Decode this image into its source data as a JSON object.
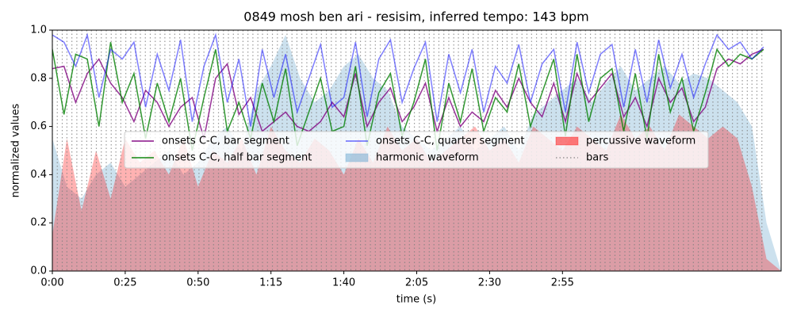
{
  "chart_data": {
    "type": "line",
    "title": "0849 mosh ben ari - resisim, inferred tempo: 143 bpm",
    "xlabel": "time (s)",
    "ylabel": "normalized values",
    "xlim": [
      0,
      250
    ],
    "ylim": [
      0,
      1
    ],
    "xticks": [
      {
        "value": 0,
        "label": "0:00"
      },
      {
        "value": 25,
        "label": "0:25"
      },
      {
        "value": 50,
        "label": "0:50"
      },
      {
        "value": 75,
        "label": "1:15"
      },
      {
        "value": 100,
        "label": "1:40"
      },
      {
        "value": 125,
        "label": "2:05"
      },
      {
        "value": 150,
        "label": "2:30"
      },
      {
        "value": 175,
        "label": "2:55"
      }
    ],
    "yticks": [
      {
        "value": 0,
        "label": "0.0"
      },
      0.2,
      0.4,
      0.6,
      0.8,
      {
        "value": 1,
        "label": "1.0"
      }
    ],
    "x": [
      0,
      4,
      8,
      12,
      16,
      20,
      24,
      28,
      32,
      36,
      40,
      44,
      48,
      52,
      56,
      60,
      64,
      68,
      72,
      76,
      80,
      84,
      88,
      92,
      96,
      100,
      104,
      108,
      112,
      116,
      120,
      124,
      128,
      132,
      136,
      140,
      144,
      148,
      152,
      156,
      160,
      164,
      168,
      172,
      176,
      180,
      184,
      188,
      192,
      196,
      200,
      204,
      208,
      212,
      216,
      220,
      224,
      228,
      232,
      236,
      240,
      244
    ],
    "legend": "center",
    "series": [
      {
        "name": "onsets C-C, bar segment",
        "color": "#800080",
        "alpha": 0.8,
        "style": "line",
        "values": [
          0.84,
          0.85,
          0.7,
          0.82,
          0.88,
          0.78,
          0.72,
          0.62,
          0.75,
          0.7,
          0.6,
          0.68,
          0.72,
          0.55,
          0.8,
          0.86,
          0.65,
          0.72,
          0.58,
          0.62,
          0.66,
          0.6,
          0.58,
          0.62,
          0.7,
          0.64,
          0.82,
          0.6,
          0.7,
          0.76,
          0.62,
          0.68,
          0.78,
          0.58,
          0.72,
          0.6,
          0.66,
          0.62,
          0.75,
          0.68,
          0.8,
          0.7,
          0.64,
          0.78,
          0.62,
          0.82,
          0.7,
          0.76,
          0.82,
          0.64,
          0.72,
          0.6,
          0.8,
          0.7,
          0.76,
          0.62,
          0.68,
          0.84,
          0.88,
          0.86,
          0.9,
          0.92
        ]
      },
      {
        "name": "onsets C-C, half bar segment",
        "color": "#008000",
        "alpha": 0.8,
        "style": "line",
        "values": [
          0.92,
          0.65,
          0.9,
          0.88,
          0.6,
          0.95,
          0.7,
          0.82,
          0.55,
          0.78,
          0.62,
          0.8,
          0.5,
          0.72,
          0.92,
          0.58,
          0.7,
          0.55,
          0.78,
          0.62,
          0.84,
          0.52,
          0.66,
          0.8,
          0.58,
          0.6,
          0.85,
          0.52,
          0.74,
          0.82,
          0.56,
          0.7,
          0.88,
          0.5,
          0.78,
          0.62,
          0.84,
          0.58,
          0.72,
          0.66,
          0.86,
          0.6,
          0.74,
          0.88,
          0.56,
          0.9,
          0.62,
          0.8,
          0.84,
          0.58,
          0.82,
          0.55,
          0.9,
          0.66,
          0.8,
          0.58,
          0.74,
          0.92,
          0.85,
          0.9,
          0.88,
          0.92
        ]
      },
      {
        "name": "onsets C-C, quarter segment",
        "color": "#0000ff",
        "alpha": 0.5,
        "style": "line",
        "values": [
          0.98,
          0.95,
          0.85,
          0.98,
          0.72,
          0.92,
          0.88,
          0.95,
          0.68,
          0.9,
          0.75,
          0.96,
          0.62,
          0.85,
          0.98,
          0.7,
          0.88,
          0.6,
          0.92,
          0.72,
          0.9,
          0.66,
          0.8,
          0.94,
          0.68,
          0.72,
          0.95,
          0.64,
          0.88,
          0.96,
          0.7,
          0.84,
          0.95,
          0.62,
          0.9,
          0.74,
          0.92,
          0.66,
          0.85,
          0.78,
          0.94,
          0.7,
          0.86,
          0.92,
          0.66,
          0.95,
          0.74,
          0.9,
          0.94,
          0.68,
          0.92,
          0.7,
          0.96,
          0.76,
          0.9,
          0.72,
          0.86,
          0.98,
          0.92,
          0.95,
          0.88,
          0.93
        ]
      },
      {
        "name": "harmonic waveform",
        "color": "#7fb3d5",
        "alpha": 0.4,
        "style": "area",
        "x": [
          0,
          5,
          10,
          15,
          20,
          25,
          30,
          35,
          40,
          45,
          50,
          55,
          60,
          65,
          70,
          75,
          80,
          85,
          90,
          95,
          100,
          105,
          110,
          115,
          120,
          125,
          130,
          135,
          140,
          145,
          150,
          155,
          160,
          165,
          170,
          175,
          180,
          185,
          190,
          195,
          200,
          205,
          210,
          215,
          220,
          225,
          230,
          235,
          240,
          245,
          250
        ],
        "values": [
          0.55,
          0.35,
          0.3,
          0.4,
          0.45,
          0.35,
          0.4,
          0.45,
          0.5,
          0.4,
          0.45,
          0.55,
          0.6,
          0.5,
          0.75,
          0.85,
          0.98,
          0.8,
          0.7,
          0.75,
          0.85,
          0.9,
          0.8,
          0.75,
          0.6,
          0.55,
          0.5,
          0.55,
          0.6,
          0.5,
          0.55,
          0.6,
          0.5,
          0.65,
          0.7,
          0.75,
          0.8,
          0.7,
          0.78,
          0.85,
          0.75,
          0.8,
          0.85,
          0.78,
          0.82,
          0.8,
          0.75,
          0.7,
          0.6,
          0.2,
          0.0
        ]
      },
      {
        "name": "percussive waveform",
        "color": "#ff0000",
        "alpha": 0.3,
        "style": "area",
        "x": [
          0,
          5,
          10,
          15,
          20,
          25,
          30,
          35,
          40,
          45,
          50,
          55,
          60,
          65,
          70,
          75,
          80,
          85,
          90,
          95,
          100,
          105,
          110,
          115,
          120,
          125,
          130,
          135,
          140,
          145,
          150,
          155,
          160,
          165,
          170,
          175,
          180,
          185,
          190,
          195,
          200,
          205,
          210,
          215,
          220,
          225,
          230,
          235,
          240,
          245,
          250
        ],
        "values": [
          0.15,
          0.55,
          0.25,
          0.5,
          0.3,
          0.55,
          0.45,
          0.5,
          0.4,
          0.55,
          0.35,
          0.5,
          0.45,
          0.55,
          0.4,
          0.6,
          0.5,
          0.45,
          0.55,
          0.5,
          0.4,
          0.55,
          0.45,
          0.6,
          0.5,
          0.55,
          0.45,
          0.5,
          0.55,
          0.6,
          0.5,
          0.55,
          0.45,
          0.6,
          0.55,
          0.5,
          0.6,
          0.55,
          0.5,
          0.65,
          0.55,
          0.6,
          0.5,
          0.65,
          0.6,
          0.55,
          0.6,
          0.55,
          0.35,
          0.05,
          0.0
        ]
      },
      {
        "name": "bars",
        "color": "#808080",
        "alpha": 0.8,
        "style": "vlines",
        "x": [
          0,
          1.7,
          3.4,
          5.0,
          6.7,
          8.4,
          10.1,
          11.8,
          13.4,
          15.1,
          16.8,
          18.5,
          20.2,
          21.8,
          23.5,
          25.2,
          26.9,
          28.6,
          30.2,
          31.9,
          33.6,
          35.3,
          37.0,
          38.6,
          40.3,
          42.0,
          43.7,
          45.4,
          47.0,
          48.7,
          50.3,
          52.0,
          53.7,
          55.3,
          57.0,
          58.7,
          60.4,
          62.1,
          63.7,
          65.4,
          67.1,
          68.8,
          70.5,
          72.1,
          73.8,
          75.5,
          77.2,
          78.9,
          80.5,
          82.2,
          83.9,
          85.6,
          87.3,
          88.9,
          90.6,
          92.3,
          94.0,
          95.7,
          97.3,
          99.0,
          100.7,
          102.4,
          104.1,
          105.7,
          107.4,
          109.1,
          110.8,
          112.5,
          114.1,
          115.8,
          117.5,
          119.2,
          120.9,
          122.5,
          124.2,
          125.9,
          127.6,
          129.3,
          130.9,
          132.6,
          134.3,
          136.0,
          137.7,
          139.3,
          141.0,
          142.7,
          144.4,
          146.1,
          147.7,
          149.4,
          151.0,
          152.7,
          154.4,
          156.0,
          157.7,
          159.4,
          161.1,
          162.8,
          164.4,
          166.1,
          167.8,
          169.5,
          171.2,
          172.8,
          174.5,
          176.2,
          177.9,
          179.6,
          181.2,
          182.9,
          184.6,
          186.3,
          188.0,
          189.6,
          191.3,
          193.0,
          194.7,
          196.4,
          198.0,
          199.7,
          201.4,
          203.1,
          204.8,
          206.4,
          208.1,
          209.8,
          211.5,
          213.2,
          214.8,
          216.5,
          218.2,
          219.9,
          221.6,
          223.2,
          224.9,
          226.6,
          228.3,
          230.0,
          231.6,
          233.3,
          235.0,
          236.7,
          238.4,
          240.0,
          241.7,
          243.4
        ]
      }
    ]
  }
}
